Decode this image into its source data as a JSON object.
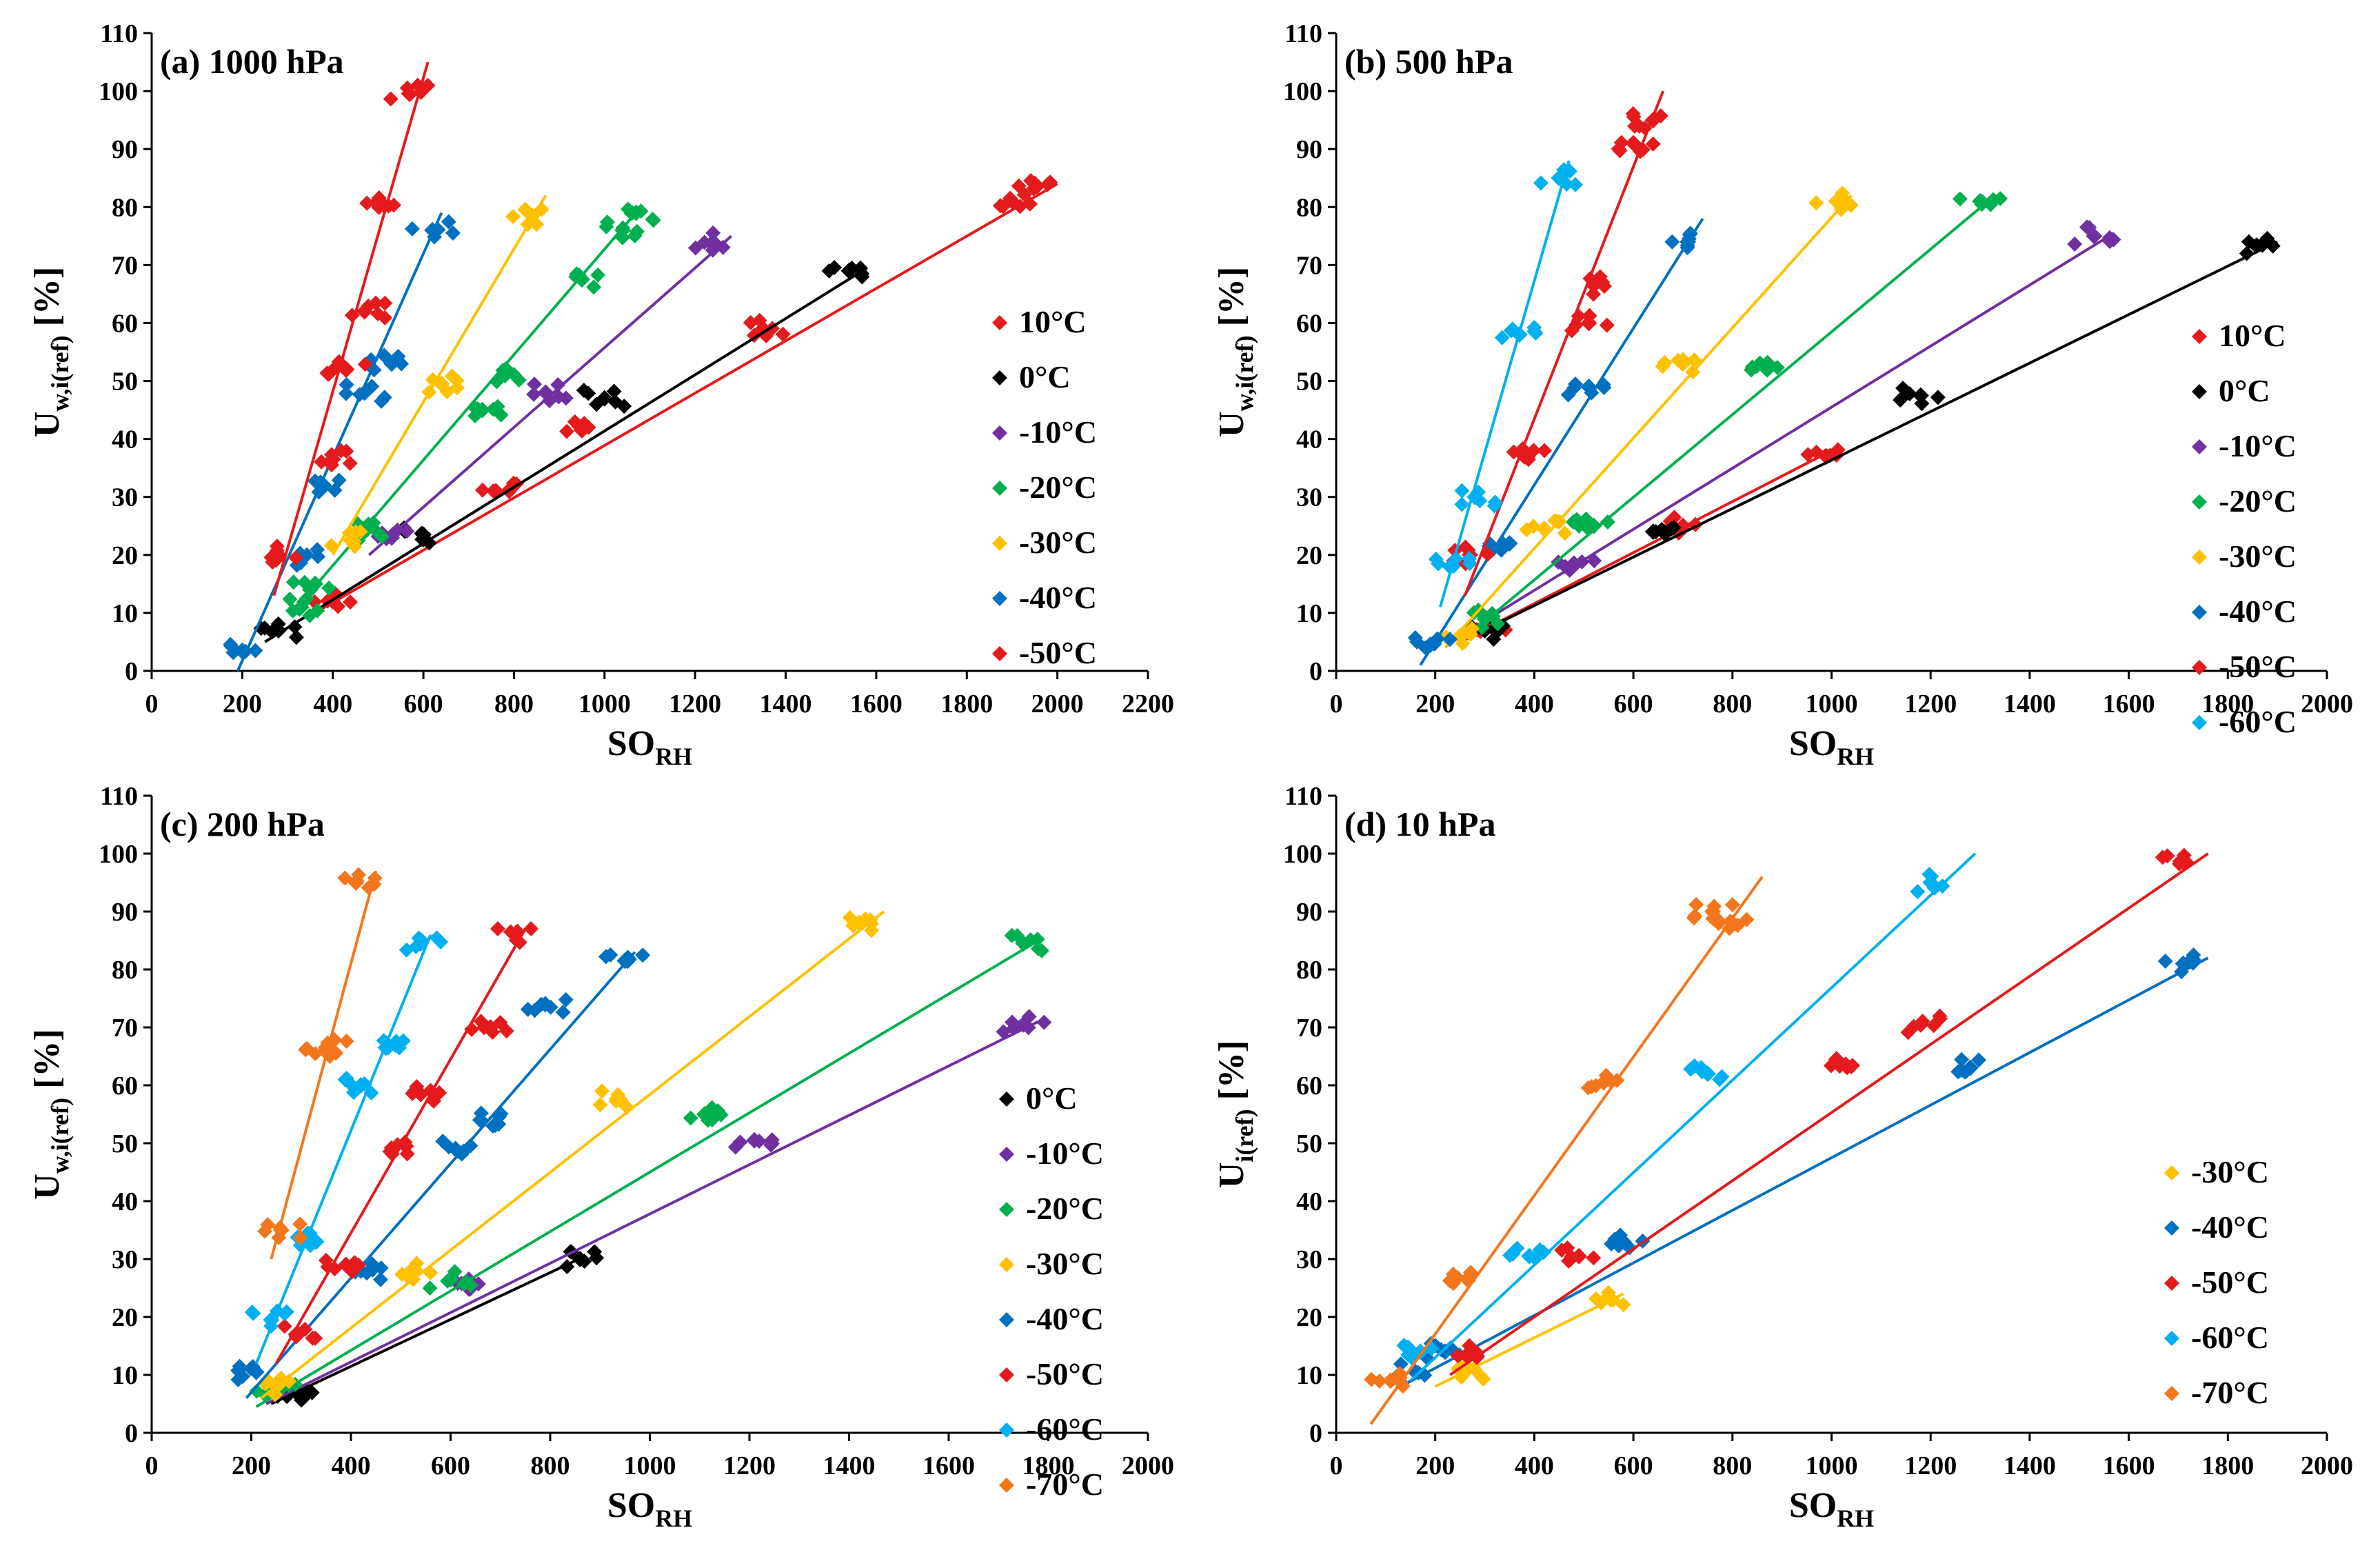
{
  "chart_data": [
    {
      "type": "scatter",
      "title": "(a)  1000 hPa",
      "xlabel": "SO",
      "xlabel_sub": "RH",
      "ylabel": "U",
      "ylabel_sub": "w,i(ref)",
      "ylabel_unit": "[%]",
      "xlim": [
        0,
        2200
      ],
      "ylim": [
        0,
        110
      ],
      "xticks": [
        0,
        200,
        400,
        600,
        800,
        1000,
        1200,
        1400,
        1600,
        1800,
        2000,
        2200
      ],
      "yticks": [
        0,
        10,
        20,
        30,
        40,
        50,
        60,
        70,
        80,
        90,
        100,
        110
      ],
      "grid": false,
      "legend_position": "right",
      "series": [
        {
          "name": "10°C",
          "color": "#e41a1c",
          "x": [
            400,
            760,
            950,
            1350,
            1900,
            1950
          ],
          "y": [
            12,
            31,
            41.5,
            59,
            81,
            84
          ],
          "fit_x": [
            360,
            2000
          ],
          "fit_y": [
            10,
            84
          ]
        },
        {
          "name": "0°C",
          "color": "#000000",
          "x": [
            280,
            600,
            1000,
            1540
          ],
          "y": [
            7,
            23.5,
            47,
            69
          ],
          "fit_x": [
            250,
            1580
          ],
          "fit_y": [
            5,
            69.5
          ]
        },
        {
          "name": "-10°C",
          "color": "#7030a0",
          "x": [
            530,
            870,
            1240
          ],
          "y": [
            23,
            48,
            74
          ],
          "fit_x": [
            480,
            1280
          ],
          "fit_y": [
            20,
            75
          ]
        },
        {
          "name": "-20°C",
          "color": "#00b050",
          "x": [
            330,
            350,
            470,
            730,
            780,
            950,
            1040,
            1070
          ],
          "y": [
            11,
            14,
            24,
            45,
            51,
            67.5,
            76,
            79
          ],
          "fit_x": [
            310,
            1080
          ],
          "fit_y": [
            10,
            80
          ]
        },
        {
          "name": "-30°C",
          "color": "#ffc000",
          "x": [
            440,
            640,
            840
          ],
          "y": [
            22.5,
            49.5,
            78.5
          ],
          "fit_x": [
            400,
            870
          ],
          "fit_y": [
            20,
            82
          ]
        },
        {
          "name": "-40°C",
          "color": "#0070c0",
          "x": [
            200,
            330,
            380,
            470,
            530,
            620
          ],
          "y": [
            3.5,
            19.5,
            32,
            48,
            53,
            76
          ],
          "fit_x": [
            190,
            640
          ],
          "fit_y": [
            0,
            79
          ]
        },
        {
          "name": "-50°C",
          "color": "#e41a1c",
          "x": [
            280,
            400,
            430,
            470,
            510,
            570
          ],
          "y": [
            20,
            36.5,
            52,
            62,
            80.5,
            99.5
          ],
          "fit_x": [
            270,
            610
          ],
          "fit_y": [
            13,
            105
          ]
        }
      ]
    },
    {
      "type": "scatter",
      "title": "(b)  500 hPa",
      "xlabel": "SO",
      "xlabel_sub": "RH",
      "ylabel": "U",
      "ylabel_sub": "w,i(ref)",
      "ylabel_unit": "[%]",
      "xlim": [
        0,
        2000
      ],
      "ylim": [
        0,
        110
      ],
      "xticks": [
        0,
        200,
        400,
        600,
        800,
        1000,
        1200,
        1400,
        1600,
        1800,
        2000
      ],
      "yticks": [
        0,
        10,
        20,
        30,
        40,
        50,
        60,
        70,
        80,
        90,
        100,
        110
      ],
      "grid": false,
      "legend_position": "right",
      "series": [
        {
          "name": "10°C",
          "color": "#e41a1c",
          "x": [
            320,
            700,
            990
          ],
          "y": [
            8,
            25,
            37
          ],
          "fit_x": [
            250,
            1000
          ],
          "fit_y": [
            5,
            38
          ]
        },
        {
          "name": "0°C",
          "color": "#000000",
          "x": [
            300,
            640,
            1180,
            1870
          ],
          "y": [
            7,
            24,
            47.5,
            73.5
          ],
          "fit_x": [
            250,
            1900
          ],
          "fit_y": [
            5,
            74
          ]
        },
        {
          "name": "-10°C",
          "color": "#7030a0",
          "x": [
            480,
            1530
          ],
          "y": [
            18.5,
            75
          ],
          "fit_x": [
            250,
            1570
          ],
          "fit_y": [
            6,
            75.5
          ]
        },
        {
          "name": "-20°C",
          "color": "#00b050",
          "x": [
            300,
            520,
            870,
            1300
          ],
          "y": [
            9,
            25,
            52,
            81
          ],
          "fit_x": [
            250,
            1330
          ],
          "fit_y": [
            5,
            82
          ]
        },
        {
          "name": "-30°C",
          "color": "#ffc000",
          "x": [
            250,
            420,
            700,
            1010
          ],
          "y": [
            6,
            24.5,
            53,
            81
          ],
          "fit_x": [
            220,
            1040
          ],
          "fit_y": [
            4,
            82
          ]
        },
        {
          "name": "-40°C",
          "color": "#0070c0",
          "x": [
            190,
            350,
            510,
            710
          ],
          "y": [
            4.5,
            22,
            49,
            74
          ],
          "fit_x": [
            170,
            740
          ],
          "fit_y": [
            1,
            78
          ]
        },
        {
          "name": "-50°C",
          "color": "#e41a1c",
          "x": [
            270,
            380,
            510,
            520,
            600,
            640
          ],
          "y": [
            20,
            37,
            60,
            66.5,
            91,
            95
          ],
          "fit_x": [
            260,
            660
          ],
          "fit_y": [
            13,
            100
          ]
        },
        {
          "name": "-60°C",
          "color": "#00b0f0",
          "x": [
            230,
            280,
            370,
            450
          ],
          "y": [
            18,
            30,
            58,
            85
          ],
          "fit_x": [
            210,
            470
          ],
          "fit_y": [
            11,
            88
          ]
        }
      ]
    },
    {
      "type": "scatter",
      "title": "(c)  200 hPa",
      "xlabel": "SO",
      "xlabel_sub": "RH",
      "ylabel": "U",
      "ylabel_sub": "w,i(ref)",
      "ylabel_unit": "[%]",
      "xlim": [
        0,
        2000
      ],
      "ylim": [
        0,
        110
      ],
      "xticks": [
        0,
        200,
        400,
        600,
        800,
        1000,
        1200,
        1400,
        1600,
        1800,
        2000
      ],
      "yticks": [
        0,
        10,
        20,
        30,
        40,
        50,
        60,
        70,
        80,
        90,
        100,
        110
      ],
      "grid": false,
      "legend_position": "right",
      "series": [
        {
          "name": "0°C",
          "color": "#000000",
          "x": [
            290,
            860
          ],
          "y": [
            7,
            30
          ],
          "fit_x": [
            240,
            870
          ],
          "fit_y": [
            5,
            30.5
          ]
        },
        {
          "name": "-10°C",
          "color": "#7030a0",
          "x": [
            640,
            1210,
            1750
          ],
          "y": [
            25,
            50.5,
            70.5
          ],
          "fit_x": [
            230,
            1780
          ],
          "fit_y": [
            5,
            71
          ]
        },
        {
          "name": "-20°C",
          "color": "#00b050",
          "x": [
            250,
            600,
            1110,
            1750
          ],
          "y": [
            7.5,
            26.5,
            55,
            84.5
          ],
          "fit_x": [
            210,
            1790
          ],
          "fit_y": [
            4.5,
            85.5
          ]
        },
        {
          "name": "-30°C",
          "color": "#ffc000",
          "x": [
            250,
            530,
            940,
            1420
          ],
          "y": [
            8,
            28,
            57.5,
            88
          ],
          "fit_x": [
            220,
            1470
          ],
          "fit_y": [
            6,
            90
          ]
        },
        {
          "name": "-40°C",
          "color": "#0070c0",
          "x": [
            210,
            420,
            610,
            660,
            790,
            950
          ],
          "y": [
            10.5,
            28,
            49,
            54,
            74,
            81.5
          ],
          "fit_x": [
            190,
            970
          ],
          "fit_y": [
            6,
            83
          ]
        },
        {
          "name": "-50°C",
          "color": "#e41a1c",
          "x": [
            290,
            390,
            510,
            540,
            680,
            730
          ],
          "y": [
            17,
            29,
            49.5,
            58.5,
            70,
            86
          ],
          "fit_x": [
            250,
            750
          ],
          "fit_y": [
            12,
            87
          ]
        },
        {
          "name": "-60°C",
          "color": "#00b0f0",
          "x": [
            240,
            330,
            420,
            470,
            540
          ],
          "y": [
            19.5,
            33,
            60,
            66.5,
            84.5
          ],
          "fit_x": [
            210,
            560
          ],
          "fit_y": [
            12,
            86
          ]
        },
        {
          "name": "-70°C",
          "color": "#f4761c",
          "x": [
            260,
            350,
            350,
            410
          ],
          "y": [
            35,
            66.5,
            66,
            95
          ],
          "fit_x": [
            240,
            450
          ],
          "fit_y": [
            30,
            97
          ]
        }
      ]
    },
    {
      "type": "scatter",
      "title": "(d)   10 hPa",
      "xlabel": "SO",
      "xlabel_sub": "RH",
      "ylabel": "U",
      "ylabel_sub": "i(ref)",
      "ylabel_unit": "[%]",
      "xlim": [
        0,
        2000
      ],
      "ylim": [
        0,
        110
      ],
      "xticks": [
        0,
        200,
        400,
        600,
        800,
        1000,
        1200,
        1400,
        1600,
        1800,
        2000
      ],
      "yticks": [
        0,
        10,
        20,
        30,
        40,
        50,
        60,
        70,
        80,
        90,
        100,
        110
      ],
      "grid": false,
      "legend_position": "right",
      "series": [
        {
          "name": "-30°C",
          "color": "#ffc000",
          "x": [
            260,
            550
          ],
          "y": [
            10.5,
            23.5
          ],
          "fit_x": [
            200,
            580
          ],
          "fit_y": [
            8,
            24
          ]
        },
        {
          "name": "-40°C",
          "color": "#0070c0",
          "x": [
            160,
            220,
            580,
            1280,
            1710
          ],
          "y": [
            10.5,
            14,
            33,
            63,
            81
          ],
          "fit_x": [
            130,
            1760
          ],
          "fit_y": [
            8,
            82
          ]
        },
        {
          "name": "-50°C",
          "color": "#e41a1c",
          "x": [
            270,
            490,
            1010,
            1180,
            1710
          ],
          "y": [
            14,
            30.5,
            64.5,
            70.5,
            98.5
          ],
          "fit_x": [
            230,
            1760
          ],
          "fit_y": [
            10,
            100
          ]
        },
        {
          "name": "-60°C",
          "color": "#00b0f0",
          "x": [
            170,
            390,
            750,
            1200
          ],
          "y": [
            14,
            30.5,
            62,
            95
          ],
          "fit_x": [
            150,
            1290
          ],
          "fit_y": [
            9,
            100
          ]
        },
        {
          "name": "-70°C",
          "color": "#f4761c",
          "x": [
            110,
            270,
            540,
            760,
            800
          ],
          "y": [
            9,
            27,
            60.5,
            90,
            88
          ],
          "fit_x": [
            70,
            860
          ],
          "fit_y": [
            1.5,
            96
          ]
        }
      ]
    }
  ]
}
